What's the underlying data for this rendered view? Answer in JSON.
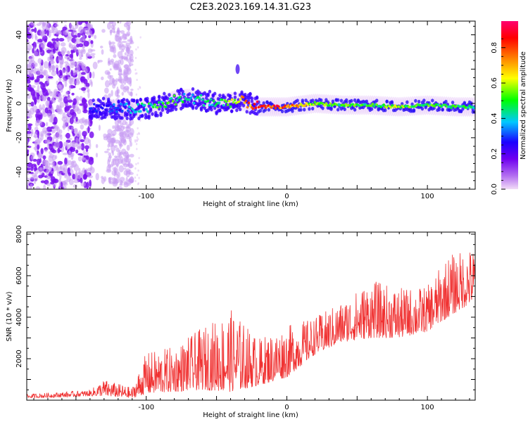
{
  "title": "C2E3.2023.169.14.31.G23",
  "chart_data": [
    {
      "type": "heatmap",
      "xlabel": "Height of straight line (km)",
      "ylabel": "Frequency (Hz)",
      "xlim": [
        -185,
        134
      ],
      "ylim": [
        -50,
        48
      ],
      "x_ticks": [
        -100,
        0,
        100
      ],
      "y_ticks": [
        -40,
        -20,
        0,
        20,
        40
      ],
      "colorbar": {
        "label": "Normalized spectral amplitude",
        "range": [
          0,
          0.95
        ],
        "ticks": [
          0.0,
          0.2,
          0.4,
          0.6,
          0.8
        ],
        "colormap": [
          "#f2dcf7",
          "#7000f0",
          "#1a00ff",
          "#00c8ff",
          "#00ff00",
          "#ffff00",
          "#ff8000",
          "#ff0000",
          "#ff0070"
        ]
      },
      "ridge": {
        "x": [
          -140,
          -120,
          -100,
          -90,
          -80,
          -70,
          -60,
          -50,
          -40,
          -30,
          -20,
          -10,
          0,
          10,
          20,
          40,
          60,
          80,
          100,
          120,
          134
        ],
        "frequency": [
          -3,
          -3,
          -3,
          -1,
          2,
          3,
          2,
          0,
          1,
          1,
          -2,
          -2,
          -2,
          -1,
          0,
          -1,
          -1,
          -2,
          -1,
          -2,
          -2
        ],
        "amplitude": [
          0.25,
          0.3,
          0.45,
          0.5,
          0.5,
          0.4,
          0.45,
          0.45,
          0.55,
          0.7,
          0.85,
          0.85,
          0.8,
          0.7,
          0.55,
          0.5,
          0.5,
          0.55,
          0.5,
          0.5,
          0.45
        ]
      }
    },
    {
      "type": "line",
      "xlabel": "Height of straight line (km)",
      "ylabel": "SNR (10 * v/v)",
      "xlim": [
        -185,
        134
      ],
      "ylim": [
        0,
        8100
      ],
      "x_ticks": [
        -100,
        0,
        100
      ],
      "y_ticks": [
        2000,
        4000,
        6000,
        8000
      ],
      "color": "#f03232",
      "trend": {
        "x": [
          -185,
          -160,
          -140,
          -130,
          -110,
          -100,
          -80,
          -60,
          -40,
          -20,
          0,
          20,
          40,
          60,
          80,
          100,
          115,
          134
        ],
        "low": [
          100,
          150,
          200,
          200,
          100,
          300,
          400,
          500,
          400,
          700,
          1100,
          2200,
          2800,
          3000,
          3000,
          3300,
          4000,
          4800
        ],
        "high": [
          300,
          400,
          500,
          1000,
          600,
          2300,
          2600,
          3500,
          4400,
          3000,
          3600,
          4000,
          4800,
          5800,
          5400,
          5500,
          7000,
          7400
        ]
      }
    }
  ]
}
